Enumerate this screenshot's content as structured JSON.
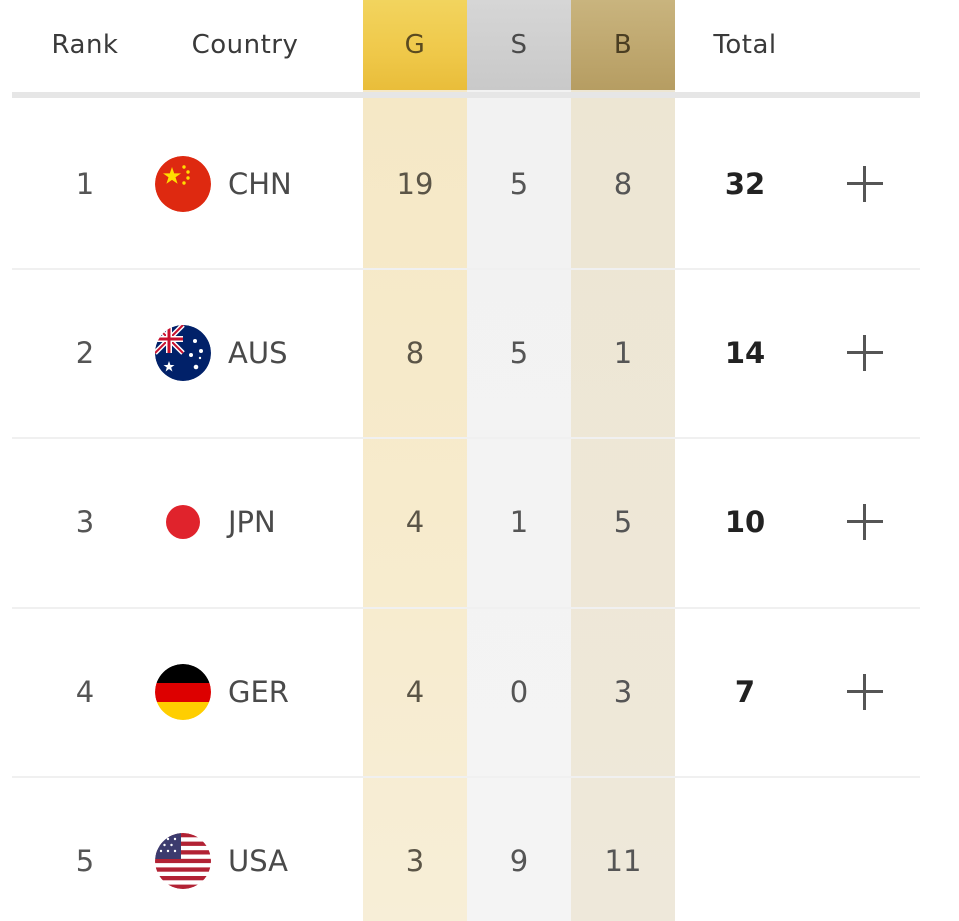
{
  "header": {
    "rank": "Rank",
    "country": "Country",
    "gold": "G",
    "silver": "S",
    "bronze": "B",
    "total": "Total"
  },
  "colors": {
    "gold": "#efc849",
    "silver": "#cfcfcf",
    "bronze": "#bea670"
  },
  "rows": [
    {
      "rank": "1",
      "code": "CHN",
      "flag": "china-flag-icon",
      "gold": "19",
      "silver": "5",
      "bronze": "8",
      "total": "32",
      "action": "plus-icon"
    },
    {
      "rank": "2",
      "code": "AUS",
      "flag": "australia-flag-icon",
      "gold": "8",
      "silver": "5",
      "bronze": "1",
      "total": "14",
      "action": "plus-icon"
    },
    {
      "rank": "3",
      "code": "JPN",
      "flag": "japan-flag-icon",
      "gold": "4",
      "silver": "1",
      "bronze": "5",
      "total": "10",
      "action": "plus-icon"
    },
    {
      "rank": "4",
      "code": "GER",
      "flag": "germany-flag-icon",
      "gold": "4",
      "silver": "0",
      "bronze": "3",
      "total": "7",
      "action": "plus-icon"
    },
    {
      "rank": "5",
      "code": "USA",
      "flag": "usa-flag-icon",
      "gold": "3",
      "silver": "9",
      "bronze": "11",
      "total": "",
      "action": ""
    }
  ]
}
